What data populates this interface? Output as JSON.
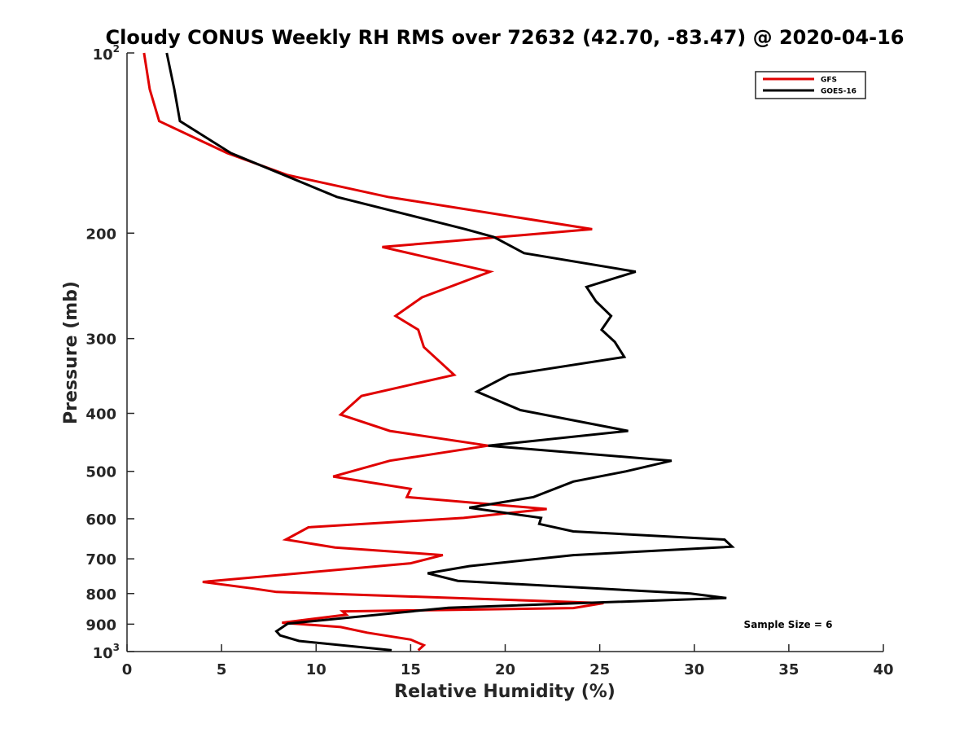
{
  "chart_data": {
    "type": "line",
    "title": "Cloudy CONUS Weekly RH RMS over 72632 (42.70, -83.47) @ 2020-04-16",
    "xlabel": "Relative Humidity (%)",
    "ylabel": "Pressure (mb)",
    "xlim": [
      0,
      40
    ],
    "ylim": [
      100,
      1000
    ],
    "y_scale": "log",
    "y_reversed": false,
    "x_ticks": [
      0,
      5,
      10,
      15,
      20,
      25,
      30,
      35,
      40
    ],
    "y_ticks": [
      {
        "value": 100,
        "label": "10",
        "sup": "2"
      },
      {
        "value": 200,
        "label": "200"
      },
      {
        "value": 300,
        "label": "300"
      },
      {
        "value": 400,
        "label": "400"
      },
      {
        "value": 500,
        "label": "500"
      },
      {
        "value": 600,
        "label": "600"
      },
      {
        "value": 700,
        "label": "700"
      },
      {
        "value": 800,
        "label": "800"
      },
      {
        "value": 900,
        "label": "900"
      },
      {
        "value": 1000,
        "label": "10",
        "sup": "3"
      }
    ],
    "grid": false,
    "legend_position": "top-right",
    "annotation": "Sample Size = 6",
    "series": [
      {
        "name": "GFS",
        "color": "#e00000",
        "points": [
          [
            0.9,
            100
          ],
          [
            1.2,
            115
          ],
          [
            1.7,
            130
          ],
          [
            5.3,
            147
          ],
          [
            8.5,
            160
          ],
          [
            13.8,
            174
          ],
          [
            24.6,
            197
          ],
          [
            13.5,
            211
          ],
          [
            19.2,
            232
          ],
          [
            15.6,
            256
          ],
          [
            14.2,
            275
          ],
          [
            15.4,
            290
          ],
          [
            15.7,
            310
          ],
          [
            17.3,
            345
          ],
          [
            12.4,
            374
          ],
          [
            11.3,
            402
          ],
          [
            13.9,
            428
          ],
          [
            19.1,
            453
          ],
          [
            13.9,
            480
          ],
          [
            10.9,
            510
          ],
          [
            15.0,
            535
          ],
          [
            14.8,
            552
          ],
          [
            22.2,
            578
          ],
          [
            17.8,
            598
          ],
          [
            9.6,
            620
          ],
          [
            8.4,
            650
          ],
          [
            11.0,
            670
          ],
          [
            16.7,
            690
          ],
          [
            15.0,
            712
          ],
          [
            4.0,
            765
          ],
          [
            6.7,
            785
          ],
          [
            7.9,
            795
          ],
          [
            25.2,
            830
          ],
          [
            23.6,
            846
          ],
          [
            11.4,
            857
          ],
          [
            11.6,
            868
          ],
          [
            8.2,
            895
          ],
          [
            11.3,
            910
          ],
          [
            12.7,
            930
          ],
          [
            15.0,
            955
          ],
          [
            15.7,
            976
          ],
          [
            15.4,
            995
          ]
        ]
      },
      {
        "name": "GOES-16",
        "color": "#000000",
        "points": [
          [
            2.1,
            100
          ],
          [
            2.5,
            115
          ],
          [
            2.8,
            130
          ],
          [
            5.5,
            147
          ],
          [
            11.1,
            174
          ],
          [
            17.9,
            197
          ],
          [
            19.4,
            203
          ],
          [
            21.0,
            216
          ],
          [
            26.9,
            232
          ],
          [
            24.3,
            246
          ],
          [
            24.8,
            260
          ],
          [
            25.6,
            275
          ],
          [
            25.1,
            290
          ],
          [
            25.8,
            304
          ],
          [
            26.3,
            322
          ],
          [
            20.2,
            345
          ],
          [
            18.5,
            368
          ],
          [
            20.8,
            395
          ],
          [
            26.5,
            428
          ],
          [
            19.1,
            453
          ],
          [
            28.8,
            480
          ],
          [
            26.4,
            500
          ],
          [
            23.6,
            520
          ],
          [
            21.5,
            552
          ],
          [
            18.1,
            575
          ],
          [
            21.9,
            598
          ],
          [
            21.8,
            612
          ],
          [
            23.6,
            630
          ],
          [
            31.6,
            650
          ],
          [
            32.0,
            668
          ],
          [
            23.6,
            690
          ],
          [
            18.1,
            720
          ],
          [
            15.9,
            740
          ],
          [
            17.5,
            762
          ],
          [
            29.8,
            800
          ],
          [
            31.7,
            814
          ],
          [
            17.0,
            845
          ],
          [
            8.5,
            898
          ],
          [
            7.9,
            925
          ],
          [
            8.1,
            940
          ],
          [
            9.1,
            960
          ],
          [
            14.0,
            995
          ]
        ]
      }
    ]
  }
}
